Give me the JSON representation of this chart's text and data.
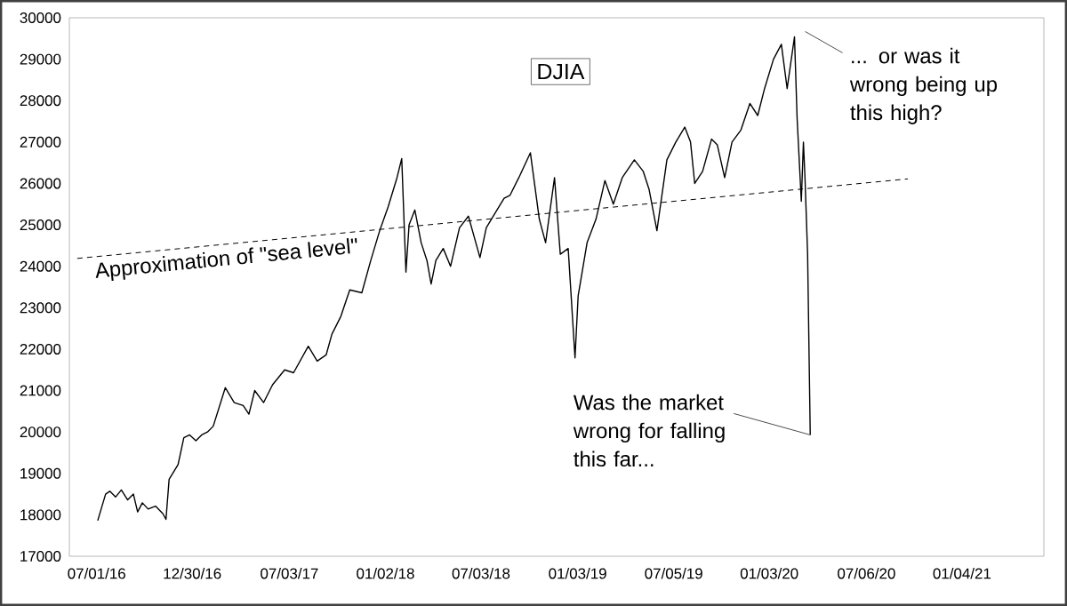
{
  "chart_data": {
    "type": "line",
    "title": "DJIA",
    "xlim": [
      "2016-05-10",
      "2021-06-09"
    ],
    "xticks": [
      {
        "value": "2016-07-01",
        "label": "07/01/16"
      },
      {
        "value": "2016-12-30",
        "label": "12/30/16"
      },
      {
        "value": "2017-07-03",
        "label": "07/03/17"
      },
      {
        "value": "2018-01-02",
        "label": "01/02/18"
      },
      {
        "value": "2018-07-03",
        "label": "07/03/18"
      },
      {
        "value": "2019-01-03",
        "label": "01/03/19"
      },
      {
        "value": "2019-07-05",
        "label": "07/05/19"
      },
      {
        "value": "2020-01-03",
        "label": "01/03/20"
      },
      {
        "value": "2020-07-06",
        "label": "07/06/20"
      },
      {
        "value": "2021-01-04",
        "label": "01/04/21"
      }
    ],
    "ylim": [
      17000,
      30000
    ],
    "yticks": [
      17000,
      18000,
      19000,
      20000,
      21000,
      22000,
      23000,
      24000,
      25000,
      26000,
      27000,
      28000,
      29000,
      30000
    ],
    "series": [
      {
        "color": "#000000",
        "x": [
          "2016-07-03",
          "2016-07-18",
          "2016-07-26",
          "2016-08-06",
          "2016-08-17",
          "2016-08-29",
          "2016-09-09",
          "2016-09-17",
          "2016-09-26",
          "2016-10-07",
          "2016-10-21",
          "2016-11-04",
          "2016-11-10",
          "2016-11-16",
          "2016-12-03",
          "2016-12-14",
          "2016-12-25",
          "2017-01-06",
          "2017-01-17",
          "2017-01-28",
          "2017-02-08",
          "2017-03-03",
          "2017-03-20",
          "2017-04-06",
          "2017-04-17",
          "2017-04-28",
          "2017-05-15",
          "2017-06-01",
          "2017-06-24",
          "2017-07-11",
          "2017-08-08",
          "2017-08-25",
          "2017-09-11",
          "2017-09-22",
          "2017-10-09",
          "2017-10-26",
          "2017-11-18",
          "2017-12-05",
          "2017-12-22",
          "2018-01-07",
          "2018-01-24",
          "2018-02-02",
          "2018-02-10",
          "2018-02-16",
          "2018-02-27",
          "2018-03-11",
          "2018-03-22",
          "2018-03-30",
          "2018-04-08",
          "2018-04-22",
          "2018-05-06",
          "2018-05-23",
          "2018-06-09",
          "2018-06-20",
          "2018-07-01",
          "2018-07-13",
          "2018-07-30",
          "2018-08-16",
          "2018-08-27",
          "2018-09-13",
          "2018-10-05",
          "2018-10-22",
          "2018-11-03",
          "2018-11-20",
          "2018-12-01",
          "2018-12-16",
          "2018-12-29",
          "2019-01-04",
          "2019-01-21",
          "2019-02-07",
          "2019-02-24",
          "2019-03-12",
          "2019-03-29",
          "2019-04-21",
          "2019-05-08",
          "2019-05-19",
          "2019-06-03",
          "2019-06-22",
          "2019-07-09",
          "2019-07-26",
          "2019-08-06",
          "2019-08-14",
          "2019-08-29",
          "2019-09-15",
          "2019-09-26",
          "2019-10-10",
          "2019-10-24",
          "2019-11-10",
          "2019-11-27",
          "2019-12-12",
          "2019-12-25",
          "2020-01-11",
          "2020-01-26",
          "2020-02-06",
          "2020-02-20",
          "2020-02-25",
          "2020-03-04",
          "2020-03-08",
          "2020-03-11",
          "2020-03-16",
          "2020-03-21"
        ],
        "values": [
          17860,
          18500,
          18570,
          18430,
          18600,
          18360,
          18500,
          18070,
          18290,
          18140,
          18210,
          18030,
          17890,
          18860,
          19210,
          19860,
          19930,
          19790,
          19930,
          20000,
          20140,
          21070,
          20710,
          20640,
          20430,
          21000,
          20710,
          21140,
          21500,
          21430,
          22070,
          21710,
          21860,
          22360,
          22790,
          23430,
          23360,
          24140,
          24860,
          25430,
          26140,
          26600,
          23860,
          25000,
          25360,
          24570,
          24140,
          23570,
          24140,
          24430,
          24000,
          24930,
          25210,
          24710,
          24210,
          24930,
          25290,
          25640,
          25710,
          26140,
          26740,
          25140,
          24570,
          26140,
          24290,
          24430,
          21790,
          23290,
          24570,
          25140,
          26070,
          25500,
          26140,
          26570,
          26290,
          25860,
          24860,
          26570,
          27000,
          27360,
          27000,
          26000,
          26290,
          27070,
          26930,
          26140,
          27000,
          27290,
          27930,
          27640,
          28290,
          29000,
          29360,
          28290,
          29540,
          27570,
          25570,
          27000,
          26140,
          24290,
          19930
        ]
      },
      {
        "color": "#000000",
        "line_style": "dashed",
        "x": [
          "2016-05-25",
          "2020-09-23"
        ],
        "values": [
          24190,
          26110
        ]
      }
    ],
    "annotations": [
      {
        "text": "Approximation of \"sea level\"",
        "x": "2017-03-03",
        "y": 24530
      },
      {
        "text": "... or was it wrong being up this high?",
        "x": "2020-02-20",
        "y": 29540
      },
      {
        "text": "Was the market wrong for falling this far...",
        "x": "2020-03-21",
        "y": 19930
      }
    ]
  }
}
